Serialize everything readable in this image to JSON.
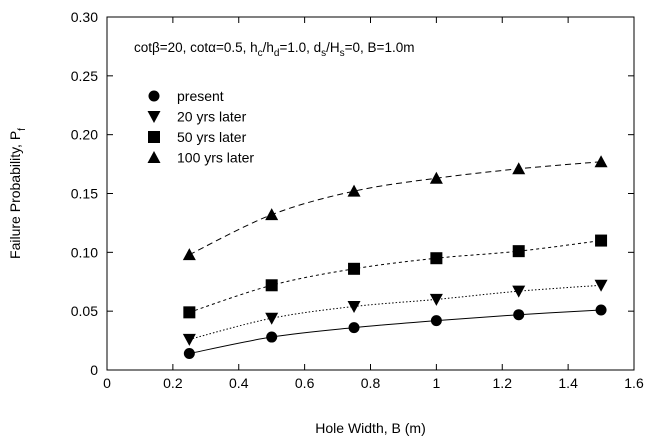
{
  "chart_data": {
    "type": "scatter",
    "xlabel": "Hole Width, B (m)",
    "ylabel_main": "Failure Probability, P",
    "ylabel_sub": "f",
    "xlim": [
      0,
      1.6
    ],
    "ylim": [
      0,
      0.3
    ],
    "xticks": [
      0,
      0.2,
      0.4,
      0.6,
      0.8,
      1.0,
      1.2,
      1.4,
      1.6
    ],
    "xtick_labels": [
      "0",
      "0.2",
      "0.4",
      "0.6",
      "0.8",
      "1",
      "1.2",
      "1.4",
      "1.6"
    ],
    "yticks": [
      0,
      0.05,
      0.1,
      0.15,
      0.2,
      0.25,
      0.3
    ],
    "ytick_labels": [
      "0",
      "0.05",
      "0.10",
      "0.15",
      "0.20",
      "0.25",
      "0.30"
    ],
    "grid": false,
    "annotation": "cotβ=20, cotα=0.5, h_c/h_d=1.0, d_s/H_s=0, B=1.0m",
    "legend_position": "upper-left",
    "x": [
      0.25,
      0.5,
      0.75,
      1.0,
      1.25,
      1.5
    ],
    "series": [
      {
        "name": "present",
        "marker": "circle",
        "line": "solid",
        "values": [
          0.014,
          0.028,
          0.036,
          0.042,
          0.047,
          0.051
        ]
      },
      {
        "name": "20 yrs later",
        "marker": "triangle-down",
        "line": "dotted",
        "values": [
          0.026,
          0.044,
          0.054,
          0.06,
          0.067,
          0.072
        ]
      },
      {
        "name": "50 yrs later",
        "marker": "square",
        "line": "short-dash",
        "values": [
          0.049,
          0.072,
          0.086,
          0.095,
          0.101,
          0.11
        ]
      },
      {
        "name": "100 yrs later",
        "marker": "triangle-up",
        "line": "long-dash",
        "values": [
          0.098,
          0.132,
          0.152,
          0.163,
          0.171,
          0.177
        ]
      }
    ]
  }
}
